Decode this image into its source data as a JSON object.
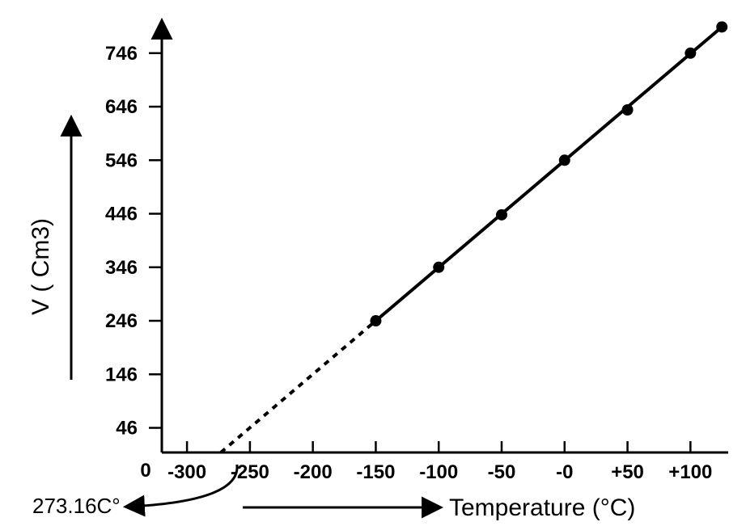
{
  "chart": {
    "type": "line",
    "background_color": "#ffffff",
    "line_color": "#000000",
    "axis_color": "#000000",
    "text_color": "#000000",
    "line_width": 4,
    "marker_style": "circle",
    "marker_radius": 7,
    "marker_color": "#000000",
    "y_axis": {
      "title": "V ( Cm3)",
      "title_fontsize": 30,
      "tick_fontsize": 24,
      "tick_fontweight": "700",
      "limits": [
        0,
        800
      ],
      "ticks": [
        46,
        146,
        246,
        346,
        446,
        546,
        646,
        746
      ],
      "tick_labels": [
        "46",
        "146",
        "246",
        "346",
        "446",
        "546",
        "646",
        "746"
      ]
    },
    "x_axis": {
      "title": "Temperature (°C)",
      "title_fontsize": 30,
      "tick_fontsize": 24,
      "tick_fontweight": "700",
      "limits": [
        -320,
        130
      ],
      "ticks": [
        -300,
        -250,
        -200,
        -150,
        -100,
        -50,
        0,
        50,
        100
      ],
      "tick_labels": [
        "-300",
        "-250",
        "-200",
        "-150",
        "-100",
        "-50",
        "-0",
        "+50",
        "+100"
      ],
      "origin_label": "0"
    },
    "series": {
      "dashed_segment": {
        "x": [
          -273.16,
          -150
        ],
        "y": [
          0,
          246
        ]
      },
      "solid_segment": {
        "x": [
          -150,
          125
        ],
        "y": [
          246,
          795
        ]
      },
      "points": [
        {
          "x": -150,
          "y": 246
        },
        {
          "x": -100,
          "y": 346
        },
        {
          "x": -50,
          "y": 444
        },
        {
          "x": 0,
          "y": 546
        },
        {
          "x": 50,
          "y": 640
        },
        {
          "x": 100,
          "y": 746
        },
        {
          "x": 125,
          "y": 795
        }
      ]
    },
    "annotation": {
      "text": "273.16C°",
      "points_to_x": -273.16
    }
  }
}
